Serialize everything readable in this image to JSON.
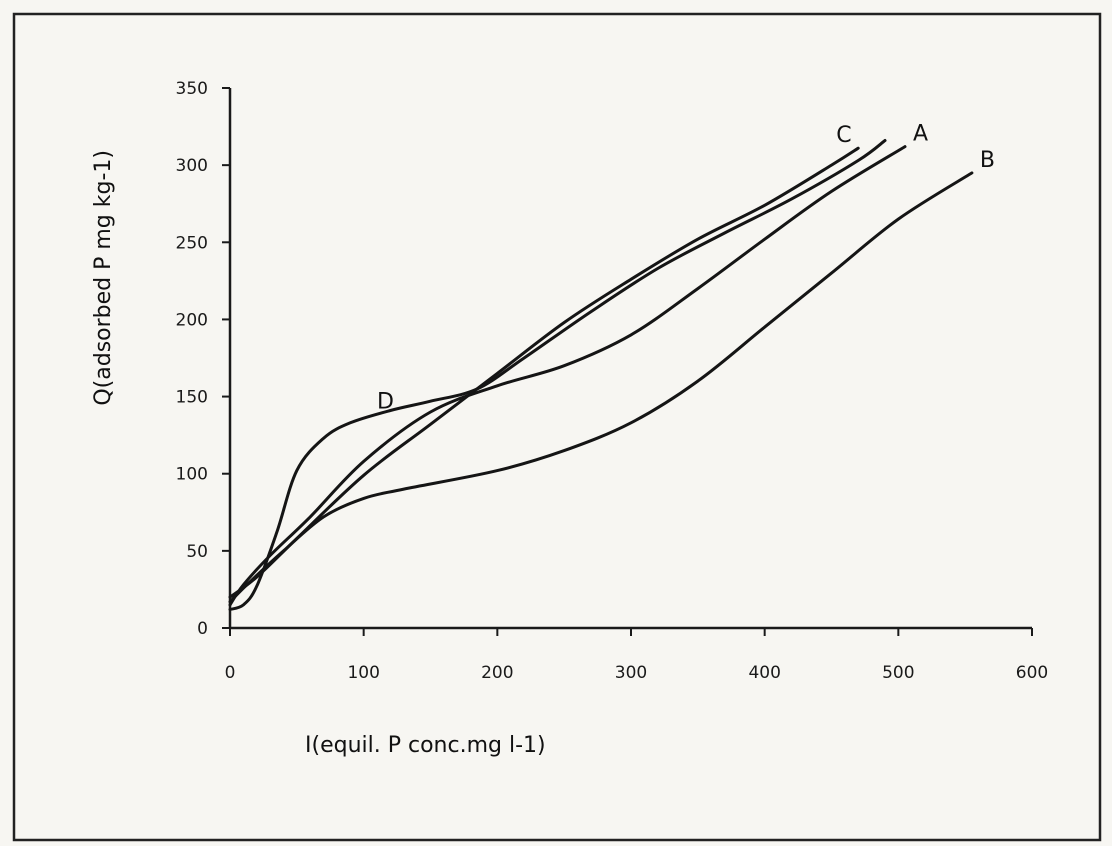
{
  "chart_data": {
    "type": "line",
    "title": "",
    "xlabel": "I(equil. P conc.mg l-1)",
    "ylabel": "Q(adsorbed P mg kg-1)",
    "xlim": [
      0,
      600
    ],
    "ylim": [
      0,
      350
    ],
    "xticks": [
      "0",
      "100",
      "200",
      "300",
      "400",
      "500",
      "600"
    ],
    "yticks": [
      "0",
      "50",
      "100",
      "150",
      "200",
      "250",
      "300",
      "350"
    ],
    "grid": false,
    "legend": "labels at curve ends",
    "series": [
      {
        "name": "A",
        "x": [
          0,
          10,
          30,
          60,
          100,
          150,
          200,
          250,
          300,
          350,
          400,
          450,
          505
        ],
        "y": [
          15,
          28,
          47,
          72,
          108,
          140,
          157,
          170,
          190,
          220,
          252,
          283,
          312
        ]
      },
      {
        "name": "B",
        "x": [
          0,
          15,
          40,
          70,
          100,
          130,
          200,
          250,
          300,
          350,
          400,
          450,
          500,
          555
        ],
        "y": [
          17,
          30,
          50,
          72,
          84,
          90,
          102,
          115,
          133,
          160,
          195,
          230,
          265,
          295
        ]
      },
      {
        "name": "C",
        "x": [
          0,
          20,
          50,
          100,
          150,
          200,
          250,
          300,
          350,
          400,
          450,
          470
        ],
        "y": [
          20,
          33,
          58,
          99,
          132,
          165,
          198,
          226,
          252,
          274,
          300,
          311
        ]
      },
      {
        "name": "D",
        "x": [
          0,
          10,
          20,
          35,
          50,
          70,
          90,
          120,
          150,
          185,
          220,
          270,
          320,
          370,
          420,
          470,
          490
        ],
        "y": [
          12,
          15,
          27,
          62,
          102,
          123,
          133,
          141,
          147,
          155,
          175,
          205,
          233,
          256,
          278,
          303,
          316
        ]
      }
    ]
  }
}
